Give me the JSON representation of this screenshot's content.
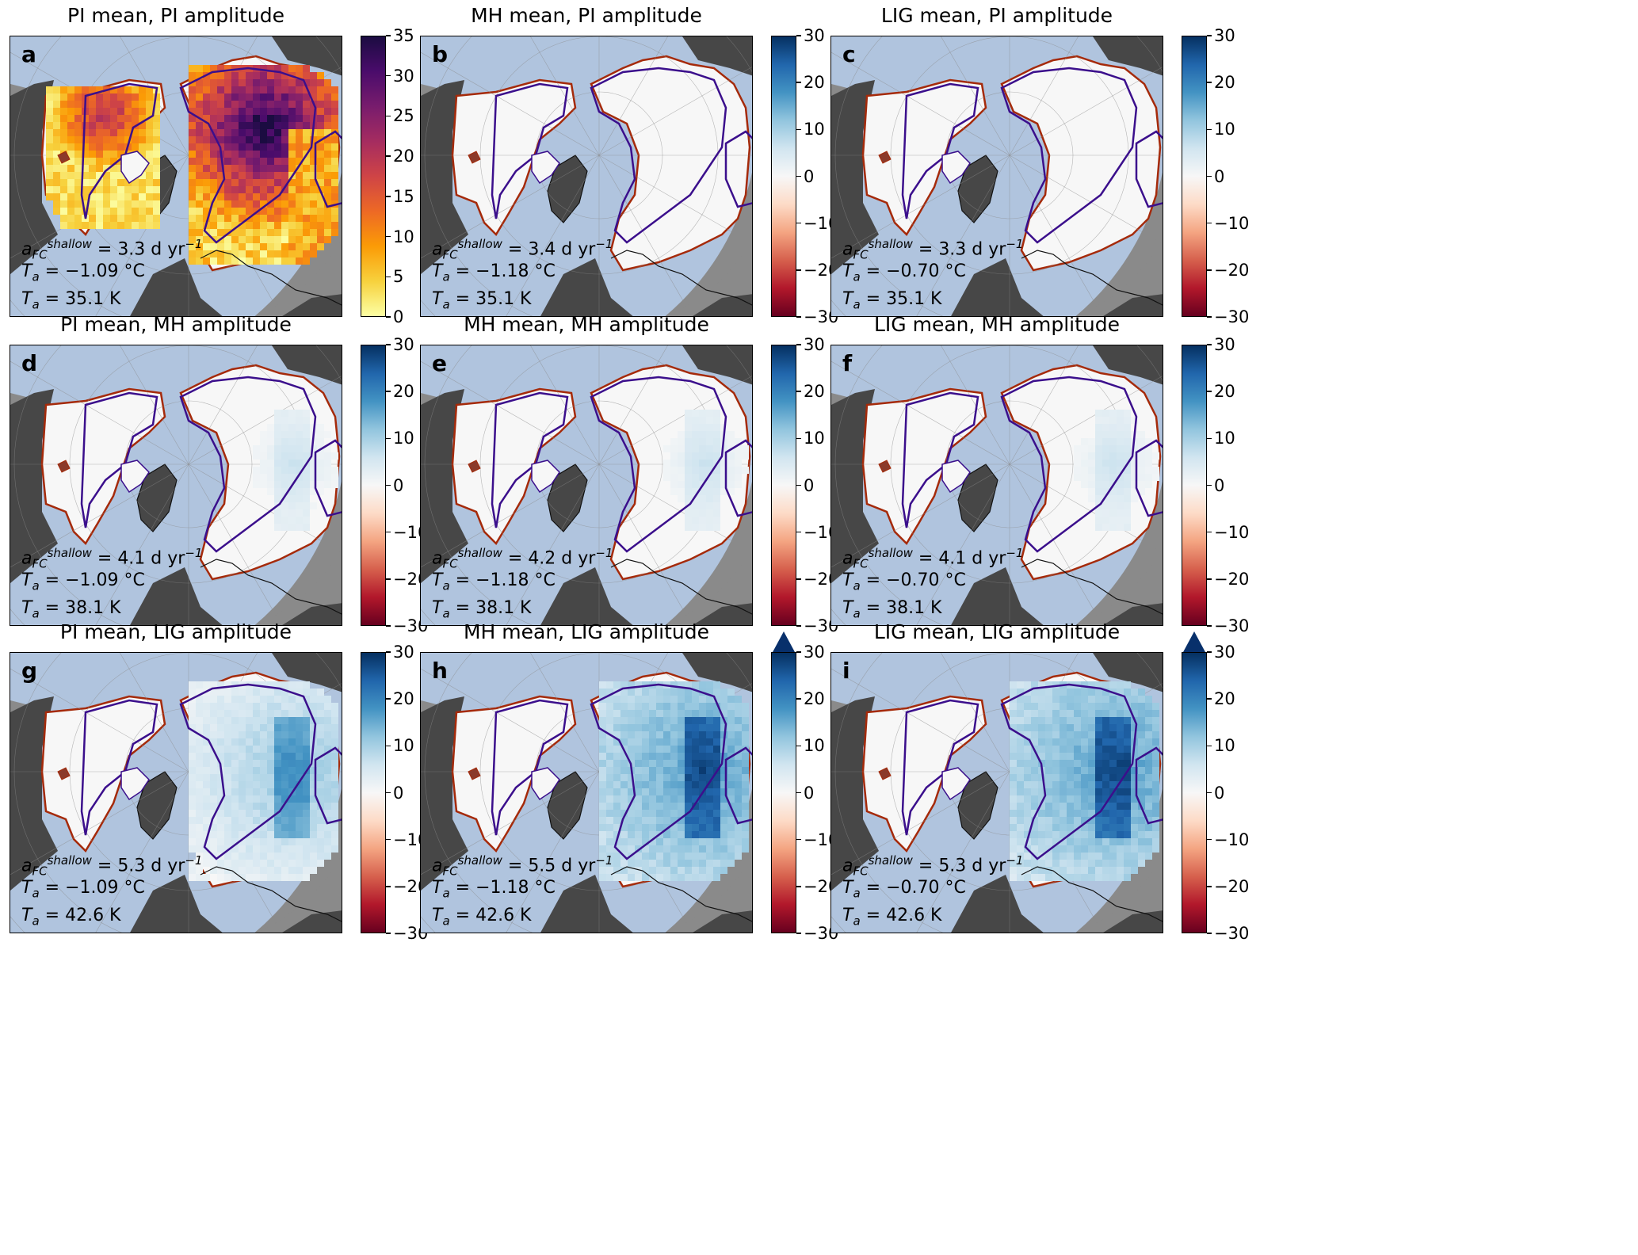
{
  "colors": {
    "ocean": "#b0c4de",
    "outside_land": "#474747",
    "outside_domain": "#8a8a8a",
    "domain_land": "#f7f7f7",
    "outer_contour": "#a52a0a",
    "inner_contour": "#3b0f8c",
    "coast": "#111111"
  },
  "colorbars": {
    "inferno": {
      "ticks": [
        "0",
        "5",
        "10",
        "15",
        "20",
        "25",
        "30",
        "35"
      ],
      "colors": [
        "#fcffa4",
        "#f7d13d",
        "#fb9b06",
        "#ed6925",
        "#cf4446",
        "#a52c60",
        "#781c6d",
        "#4a0c6b",
        "#1b0c41"
      ]
    },
    "rdbu": {
      "ticks": [
        "−30",
        "−20",
        "−10",
        "0",
        "10",
        "20",
        "30"
      ],
      "colors": [
        "#67001f",
        "#b2182b",
        "#d6604d",
        "#f4a582",
        "#fddbc7",
        "#f7f7f7",
        "#d1e5f0",
        "#92c5de",
        "#4393c3",
        "#2166ac",
        "#053061"
      ]
    }
  },
  "panels": [
    {
      "letter": "a",
      "title": "PI mean, PI amplitude",
      "colorbar": "inferno",
      "extend_max": false,
      "a_fc": "3.3",
      "t_mean": "−1.09",
      "t_amp": "35.1",
      "anomaly": "inferno"
    },
    {
      "letter": "b",
      "title": "MH mean, PI amplitude",
      "colorbar": "rdbu",
      "extend_max": false,
      "a_fc": "3.4",
      "t_mean": "−1.18",
      "t_amp": "35.1",
      "anomaly": 0
    },
    {
      "letter": "c",
      "title": "LIG mean, PI amplitude",
      "colorbar": "rdbu",
      "extend_max": false,
      "a_fc": "3.3",
      "t_mean": "−0.70",
      "t_amp": "35.1",
      "anomaly": 0
    },
    {
      "letter": "d",
      "title": "PI mean, MH amplitude",
      "colorbar": "rdbu",
      "extend_max": false,
      "a_fc": "4.1",
      "t_mean": "−1.09",
      "t_amp": "38.1",
      "anomaly": 1
    },
    {
      "letter": "e",
      "title": "MH mean, MH amplitude",
      "colorbar": "rdbu",
      "extend_max": false,
      "a_fc": "4.2",
      "t_mean": "−1.18",
      "t_amp": "38.1",
      "anomaly": 1
    },
    {
      "letter": "f",
      "title": "LIG mean, MH amplitude",
      "colorbar": "rdbu",
      "extend_max": false,
      "a_fc": "4.1",
      "t_mean": "−0.70",
      "t_amp": "38.1",
      "anomaly": 1
    },
    {
      "letter": "g",
      "title": "PI mean, LIG amplitude",
      "colorbar": "rdbu",
      "extend_max": false,
      "a_fc": "5.3",
      "t_mean": "−1.09",
      "t_amp": "42.6",
      "anomaly": 2
    },
    {
      "letter": "h",
      "title": "MH mean, LIG amplitude",
      "colorbar": "rdbu",
      "extend_max": true,
      "a_fc": "5.5",
      "t_mean": "−1.18",
      "t_amp": "42.6",
      "anomaly": 3
    },
    {
      "letter": "i",
      "title": "LIG mean, LIG amplitude",
      "colorbar": "rdbu",
      "extend_max": true,
      "a_fc": "5.3",
      "t_mean": "−0.70",
      "t_amp": "42.6",
      "anomaly": 3
    }
  ],
  "annotation_text": {
    "a_sym": "a",
    "a_sub": "FC",
    "a_sup": "shallow",
    "t_sym": "T",
    "t_sub": "a",
    "eq": " = ",
    "a_unit": " d yr",
    "a_unit_sup": "−1",
    "t_mean_unit": " °C",
    "t_amp_unit": " K"
  }
}
